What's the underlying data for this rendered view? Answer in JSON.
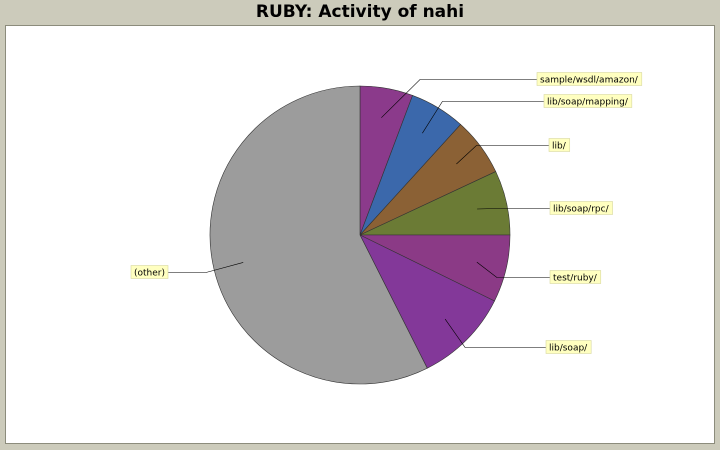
{
  "chart_data": {
    "type": "pie",
    "title": "RUBY: Activity of nahi",
    "slices": [
      {
        "label": "sample/wsdl/amazon/",
        "value": 5.7,
        "color": "#8b3a8b"
      },
      {
        "label": "lib/soap/mapping/",
        "value": 6.0,
        "color": "#3b68ab"
      },
      {
        "label": "lib/",
        "value": 6.3,
        "color": "#8b6135"
      },
      {
        "label": "lib/soap/rpc/",
        "value": 7.0,
        "color": "#6b7b35"
      },
      {
        "label": "test/ruby/",
        "value": 7.3,
        "color": "#8b3a86"
      },
      {
        "label": "lib/soap/",
        "value": 10.3,
        "color": "#833899"
      },
      {
        "label": "(other)",
        "value": 57.4,
        "color": "#9c9c9c"
      }
    ]
  }
}
